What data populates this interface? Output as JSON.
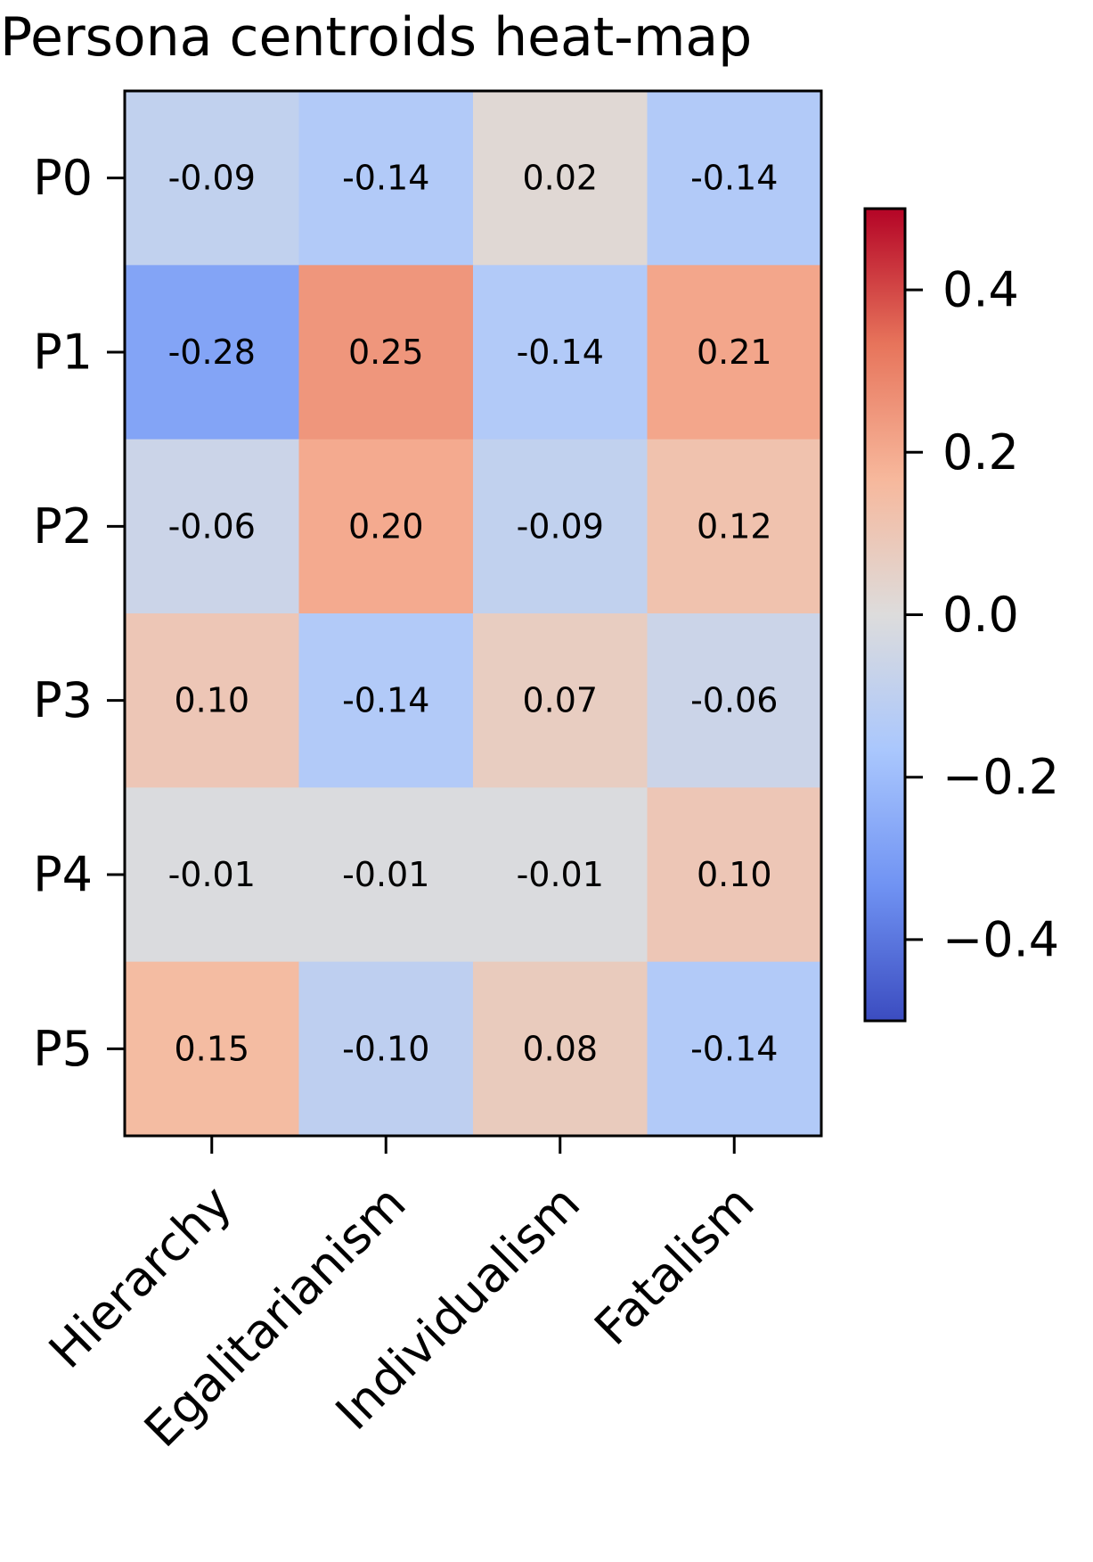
{
  "chart_data": {
    "type": "heatmap",
    "title": "Persona centroids heat-map",
    "rows": [
      "P0",
      "P1",
      "P2",
      "P3",
      "P4",
      "P5"
    ],
    "columns": [
      "Hierarchy",
      "Egalitarianism",
      "Individualism",
      "Fatalism"
    ],
    "values": [
      [
        -0.09,
        -0.14,
        0.02,
        -0.14
      ],
      [
        -0.28,
        0.25,
        -0.14,
        0.21
      ],
      [
        -0.06,
        0.2,
        -0.09,
        0.12
      ],
      [
        0.1,
        -0.14,
        0.07,
        -0.06
      ],
      [
        -0.01,
        -0.01,
        -0.01,
        0.1
      ],
      [
        0.15,
        -0.1,
        0.08,
        -0.14
      ]
    ],
    "cell_labels": [
      [
        "-0.09",
        "-0.14",
        "0.02",
        "-0.14"
      ],
      [
        "-0.28",
        "0.25",
        "-0.14",
        "0.21"
      ],
      [
        "-0.06",
        "0.20",
        "-0.09",
        "0.12"
      ],
      [
        "0.10",
        "-0.14",
        "0.07",
        "-0.06"
      ],
      [
        "-0.01",
        "-0.01",
        "-0.01",
        "0.10"
      ],
      [
        "0.15",
        "-0.10",
        "0.08",
        "-0.14"
      ]
    ],
    "colormap": "coolwarm",
    "colormap_stops": [
      "#3b4cc0",
      "#7093f3",
      "#aac7fd",
      "#dddcdc",
      "#f7b89c",
      "#e7745b",
      "#b40426"
    ],
    "color_range": [
      -0.5,
      0.5
    ],
    "colorbar": {
      "ticks": [
        0.4,
        0.2,
        0.0,
        -0.2,
        -0.4
      ],
      "tick_labels": [
        "0.4",
        "0.2",
        "0.0",
        "−0.2",
        "−0.4"
      ],
      "placement": "right"
    },
    "xlabel": "",
    "ylabel": "",
    "xtick_rotation": 45,
    "grid": false
  }
}
